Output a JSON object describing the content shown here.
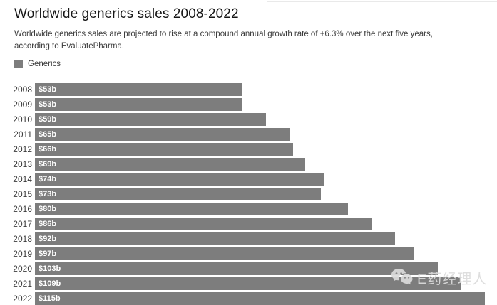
{
  "header": {
    "title": "Worldwide generics sales 2008-2022",
    "subtitle": "Worldwide generics sales are projected to rise at a compound annual growth rate of +6.3% over the next five years, according to EvaluatePharma."
  },
  "legend": {
    "label": "Generics",
    "color": "#7d7d7d"
  },
  "chart_data": {
    "type": "bar",
    "orientation": "horizontal",
    "title": "Worldwide generics sales 2008-2022",
    "subtitle": "Worldwide generics sales are projected to rise at a compound annual growth rate of +6.3% over the next five years, according to EvaluatePharma.",
    "series_name": "Generics",
    "categories": [
      "2008",
      "2009",
      "2010",
      "2011",
      "2012",
      "2013",
      "2014",
      "2015",
      "2016",
      "2017",
      "2018",
      "2019",
      "2020",
      "2021",
      "2022"
    ],
    "values": [
      53,
      53,
      59,
      65,
      66,
      69,
      74,
      73,
      80,
      86,
      92,
      97,
      103,
      109,
      115
    ],
    "value_labels": [
      "$53b",
      "$53b",
      "$59b",
      "$65b",
      "$66b",
      "$69b",
      "$74b",
      "$73b",
      "$80b",
      "$86b",
      "$92b",
      "$97b",
      "$103b",
      "$109b",
      "$115b"
    ],
    "unit": "billion USD",
    "xlabel": "",
    "ylabel": "",
    "xlim": [
      0,
      115
    ],
    "grid": false,
    "legend_position": "top-left",
    "bar_color": "#7d7d7d",
    "value_label_color": "#ffffff"
  },
  "watermark": {
    "text": "E药经理人",
    "icon": "wechat-icon",
    "color": "#dcdcdc"
  }
}
